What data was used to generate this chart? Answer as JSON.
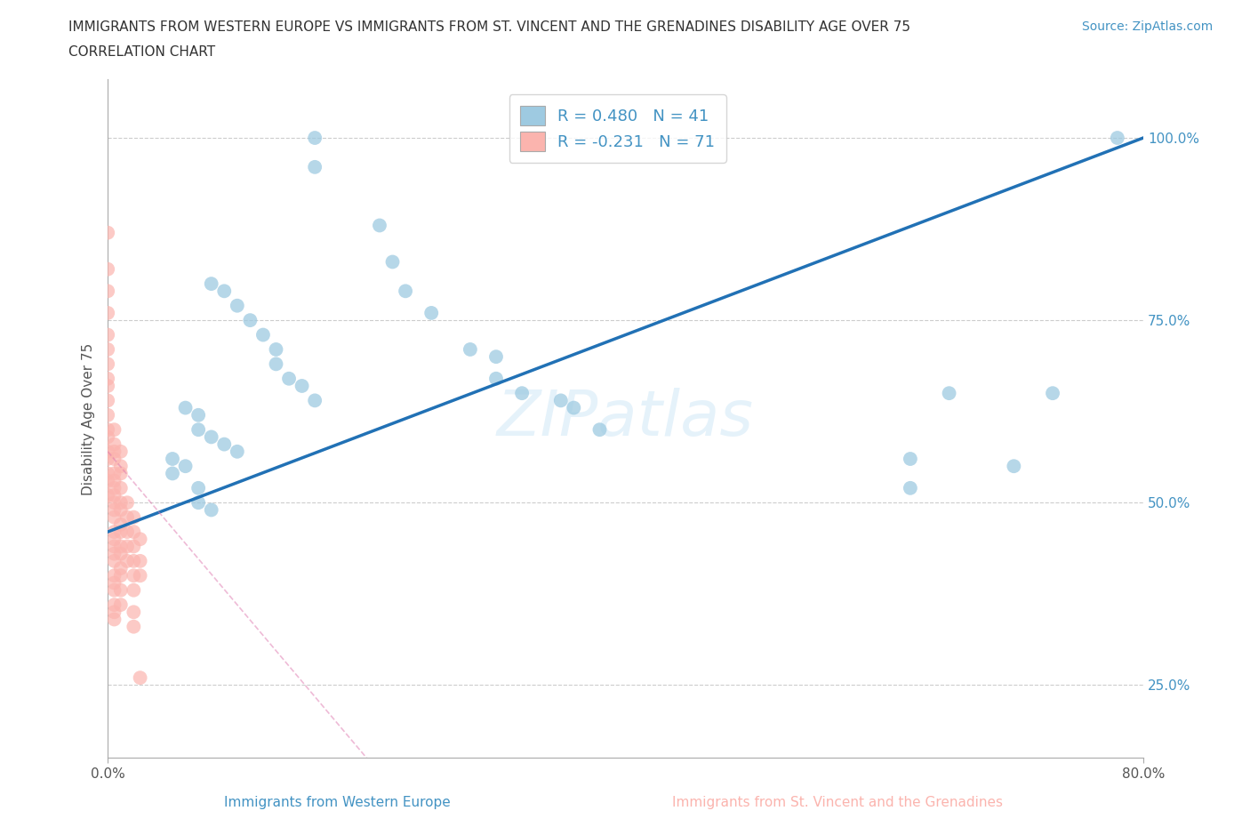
{
  "title_line1": "IMMIGRANTS FROM WESTERN EUROPE VS IMMIGRANTS FROM ST. VINCENT AND THE GRENADINES DISABILITY AGE OVER 75",
  "title_line2": "CORRELATION CHART",
  "source_text": "Source: ZipAtlas.com",
  "ylabel": "Disability Age Over 75",
  "xaxis_label_blue": "Immigrants from Western Europe",
  "xaxis_label_pink": "Immigrants from St. Vincent and the Grenadines",
  "xlim": [
    0.0,
    0.8
  ],
  "ylim": [
    0.15,
    1.08
  ],
  "xtick_vals": [
    0.0,
    0.8
  ],
  "xtick_labels": [
    "0.0%",
    "80.0%"
  ],
  "ytick_vals": [
    0.25,
    0.5,
    0.75,
    1.0
  ],
  "ytick_labels": [
    "25.0%",
    "50.0%",
    "75.0%",
    "100.0%"
  ],
  "legend_r_blue": "R = 0.480",
  "legend_n_blue": "N = 41",
  "legend_r_pink": "R = -0.231",
  "legend_n_pink": "N = 71",
  "blue_color": "#9ecae1",
  "pink_color": "#fbb4ae",
  "blue_line_color": "#2171b5",
  "pink_line_color": "#de77ae",
  "text_color": "#4393c3",
  "title_color": "#333333",
  "blue_scatter_x": [
    0.16,
    0.16,
    0.21,
    0.22,
    0.23,
    0.25,
    0.08,
    0.09,
    0.1,
    0.11,
    0.12,
    0.13,
    0.13,
    0.14,
    0.15,
    0.16,
    0.06,
    0.07,
    0.07,
    0.08,
    0.09,
    0.1,
    0.28,
    0.3,
    0.3,
    0.32,
    0.35,
    0.36,
    0.38,
    0.62,
    0.62,
    0.65,
    0.7,
    0.73,
    0.78,
    0.05,
    0.05,
    0.06,
    0.07,
    0.07,
    0.08
  ],
  "blue_scatter_y": [
    1.0,
    0.96,
    0.88,
    0.83,
    0.79,
    0.76,
    0.8,
    0.79,
    0.77,
    0.75,
    0.73,
    0.71,
    0.69,
    0.67,
    0.66,
    0.64,
    0.63,
    0.62,
    0.6,
    0.59,
    0.58,
    0.57,
    0.71,
    0.7,
    0.67,
    0.65,
    0.64,
    0.63,
    0.6,
    0.56,
    0.52,
    0.65,
    0.55,
    0.65,
    1.0,
    0.54,
    0.56,
    0.55,
    0.52,
    0.5,
    0.49
  ],
  "pink_scatter_x": [
    0.0,
    0.0,
    0.0,
    0.0,
    0.0,
    0.0,
    0.0,
    0.0,
    0.0,
    0.0,
    0.0,
    0.0,
    0.0,
    0.0,
    0.0,
    0.0,
    0.0,
    0.0,
    0.005,
    0.005,
    0.005,
    0.005,
    0.005,
    0.005,
    0.005,
    0.005,
    0.005,
    0.005,
    0.005,
    0.005,
    0.005,
    0.005,
    0.005,
    0.005,
    0.005,
    0.005,
    0.005,
    0.005,
    0.005,
    0.005,
    0.01,
    0.01,
    0.01,
    0.01,
    0.01,
    0.01,
    0.01,
    0.01,
    0.01,
    0.01,
    0.01,
    0.01,
    0.01,
    0.01,
    0.015,
    0.015,
    0.015,
    0.015,
    0.015,
    0.02,
    0.02,
    0.02,
    0.02,
    0.02,
    0.02,
    0.02,
    0.02,
    0.025,
    0.025,
    0.025,
    0.025
  ],
  "pink_scatter_y": [
    0.87,
    0.82,
    0.79,
    0.76,
    0.73,
    0.71,
    0.69,
    0.67,
    0.66,
    0.64,
    0.62,
    0.6,
    0.59,
    0.57,
    0.56,
    0.54,
    0.53,
    0.51,
    0.6,
    0.58,
    0.57,
    0.56,
    0.54,
    0.53,
    0.52,
    0.51,
    0.5,
    0.49,
    0.48,
    0.46,
    0.45,
    0.44,
    0.43,
    0.42,
    0.4,
    0.39,
    0.38,
    0.36,
    0.35,
    0.34,
    0.57,
    0.55,
    0.54,
    0.52,
    0.5,
    0.49,
    0.47,
    0.46,
    0.44,
    0.43,
    0.41,
    0.4,
    0.38,
    0.36,
    0.5,
    0.48,
    0.46,
    0.44,
    0.42,
    0.48,
    0.46,
    0.44,
    0.42,
    0.4,
    0.38,
    0.35,
    0.33,
    0.45,
    0.42,
    0.4,
    0.26
  ],
  "blue_trend_x0": 0.0,
  "blue_trend_x1": 0.8,
  "blue_trend_y0": 0.46,
  "blue_trend_y1": 1.0,
  "pink_trend_x0": 0.0,
  "pink_trend_x1": 0.2,
  "pink_trend_y0": 0.57,
  "pink_trend_y1": 0.15
}
